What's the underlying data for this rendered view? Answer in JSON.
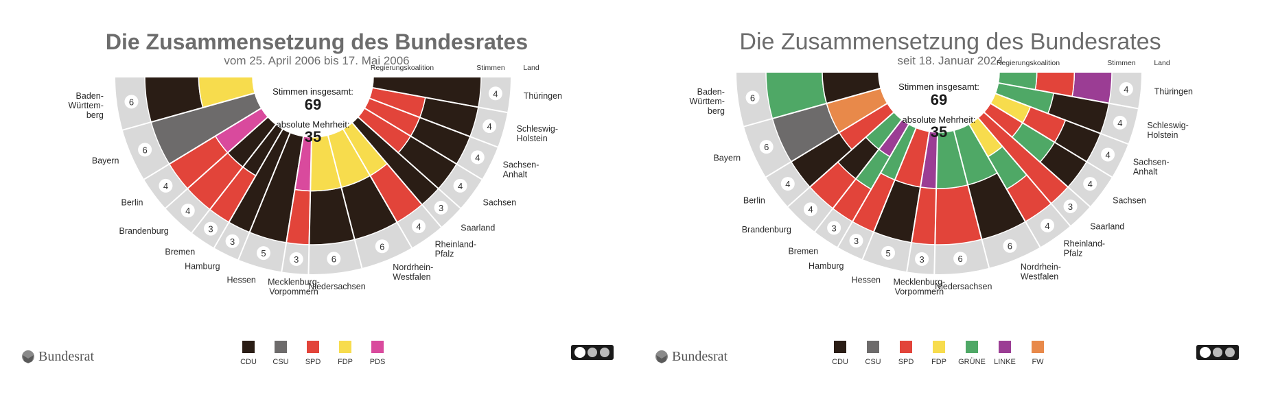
{
  "panels": [
    {
      "title": "Die Zusammensetzung des Bundesrates",
      "subtitle": "vom 25. April 2006 bis 17. Mai 2006",
      "center": {
        "line1": "Stimmen insgesamt:",
        "total": "69",
        "line2": "absolute Mehrheit:",
        "majority": "35"
      },
      "header": {
        "coalition": "Regierungskoalition",
        "votes": "Stimmen",
        "state": "Land"
      },
      "states": [
        {
          "name": [
            "Baden-",
            "Württem-",
            "berg"
          ],
          "votes": "6",
          "parties": [
            "CDU",
            "FDP"
          ]
        },
        {
          "name": [
            "Bayern"
          ],
          "votes": "6",
          "parties": [
            "CSU"
          ]
        },
        {
          "name": [
            "Berlin"
          ],
          "votes": "4",
          "parties": [
            "SPD",
            "PDS"
          ]
        },
        {
          "name": [
            "Brandenburg"
          ],
          "votes": "4",
          "parties": [
            "SPD",
            "CDU"
          ]
        },
        {
          "name": [
            "Bremen"
          ],
          "votes": "3",
          "parties": [
            "SPD",
            "CDU"
          ]
        },
        {
          "name": [
            "Hamburg"
          ],
          "votes": "3",
          "parties": [
            "CDU"
          ]
        },
        {
          "name": [
            "Hessen"
          ],
          "votes": "5",
          "parties": [
            "CDU"
          ]
        },
        {
          "name": [
            "Mecklenburg-",
            "Vorpommern"
          ],
          "votes": "3",
          "parties": [
            "SPD",
            "PDS"
          ]
        },
        {
          "name": [
            "Niedersachsen"
          ],
          "votes": "6",
          "parties": [
            "CDU",
            "FDP"
          ]
        },
        {
          "name": [
            "Nordrhein-",
            "Westfalen"
          ],
          "votes": "6",
          "parties": [
            "CDU",
            "FDP"
          ]
        },
        {
          "name": [
            "Rheinland-",
            "Pfalz"
          ],
          "votes": "4",
          "parties": [
            "SPD",
            "FDP"
          ]
        },
        {
          "name": [
            "Saarland"
          ],
          "votes": "3",
          "parties": [
            "CDU"
          ]
        },
        {
          "name": [
            "Sachsen"
          ],
          "votes": "4",
          "parties": [
            "CDU",
            "SPD"
          ]
        },
        {
          "name": [
            "Sachsen-",
            "Anhalt"
          ],
          "votes": "4",
          "parties": [
            "CDU",
            "SPD"
          ]
        },
        {
          "name": [
            "Schleswig-",
            "Holstein"
          ],
          "votes": "4",
          "parties": [
            "CDU",
            "SPD"
          ]
        },
        {
          "name": [
            "Thüringen"
          ],
          "votes": "4",
          "parties": [
            "CDU"
          ]
        }
      ],
      "legend": [
        {
          "label": "CDU",
          "color": "#2a1d15"
        },
        {
          "label": "CSU",
          "color": "#6d6b6b"
        },
        {
          "label": "SPD",
          "color": "#e2443a"
        },
        {
          "label": "FDP",
          "color": "#f7dc4d"
        },
        {
          "label": "PDS",
          "color": "#d94a9d"
        }
      ],
      "logo": "Bundesrat"
    },
    {
      "title": "Die Zusammensetzung des Bundesrates",
      "subtitle": "seit 18. Januar 2024",
      "center": {
        "line1": "Stimmen insgesamt:",
        "total": "69",
        "line2": "absolute Mehrheit:",
        "majority": "35"
      },
      "header": {
        "coalition": "Regierungskoalition",
        "votes": "Stimmen",
        "state": "Land"
      },
      "states": [
        {
          "name": [
            "Baden-",
            "Württem-",
            "berg"
          ],
          "votes": "6",
          "parties": [
            "GRÜNE",
            "CDU"
          ]
        },
        {
          "name": [
            "Bayern"
          ],
          "votes": "6",
          "parties": [
            "CSU",
            "FW"
          ]
        },
        {
          "name": [
            "Berlin"
          ],
          "votes": "4",
          "parties": [
            "CDU",
            "SPD"
          ]
        },
        {
          "name": [
            "Brandenburg"
          ],
          "votes": "4",
          "parties": [
            "SPD",
            "CDU",
            "GRÜNE"
          ]
        },
        {
          "name": [
            "Bremen"
          ],
          "votes": "3",
          "parties": [
            "SPD",
            "GRÜNE",
            "LINKE"
          ]
        },
        {
          "name": [
            "Hamburg"
          ],
          "votes": "3",
          "parties": [
            "SPD",
            "GRÜNE"
          ]
        },
        {
          "name": [
            "Hessen"
          ],
          "votes": "5",
          "parties": [
            "CDU",
            "SPD"
          ]
        },
        {
          "name": [
            "Mecklenburg-",
            "Vorpommern"
          ],
          "votes": "3",
          "parties": [
            "SPD",
            "LINKE"
          ]
        },
        {
          "name": [
            "Niedersachsen"
          ],
          "votes": "6",
          "parties": [
            "SPD",
            "GRÜNE"
          ]
        },
        {
          "name": [
            "Nordrhein-",
            "Westfalen"
          ],
          "votes": "6",
          "parties": [
            "CDU",
            "GRÜNE"
          ]
        },
        {
          "name": [
            "Rheinland-",
            "Pfalz"
          ],
          "votes": "4",
          "parties": [
            "SPD",
            "GRÜNE",
            "FDP"
          ]
        },
        {
          "name": [
            "Saarland"
          ],
          "votes": "3",
          "parties": [
            "SPD"
          ]
        },
        {
          "name": [
            "Sachsen"
          ],
          "votes": "4",
          "parties": [
            "CDU",
            "GRÜNE",
            "SPD"
          ]
        },
        {
          "name": [
            "Sachsen-",
            "Anhalt"
          ],
          "votes": "4",
          "parties": [
            "CDU",
            "SPD",
            "FDP"
          ]
        },
        {
          "name": [
            "Schleswig-",
            "Holstein"
          ],
          "votes": "4",
          "parties": [
            "CDU",
            "GRÜNE"
          ]
        },
        {
          "name": [
            "Thüringen"
          ],
          "votes": "4",
          "parties": [
            "LINKE",
            "SPD",
            "GRÜNE"
          ]
        }
      ],
      "legend": [
        {
          "label": "CDU",
          "color": "#2a1d15"
        },
        {
          "label": "CSU",
          "color": "#6d6b6b"
        },
        {
          "label": "SPD",
          "color": "#e2443a"
        },
        {
          "label": "FDP",
          "color": "#f7dc4d"
        },
        {
          "label": "GRÜNE",
          "color": "#4fa866"
        },
        {
          "label": "LINKE",
          "color": "#9b3d94"
        },
        {
          "label": "FW",
          "color": "#e8894a"
        }
      ],
      "logo": "Bundesrat"
    }
  ]
}
